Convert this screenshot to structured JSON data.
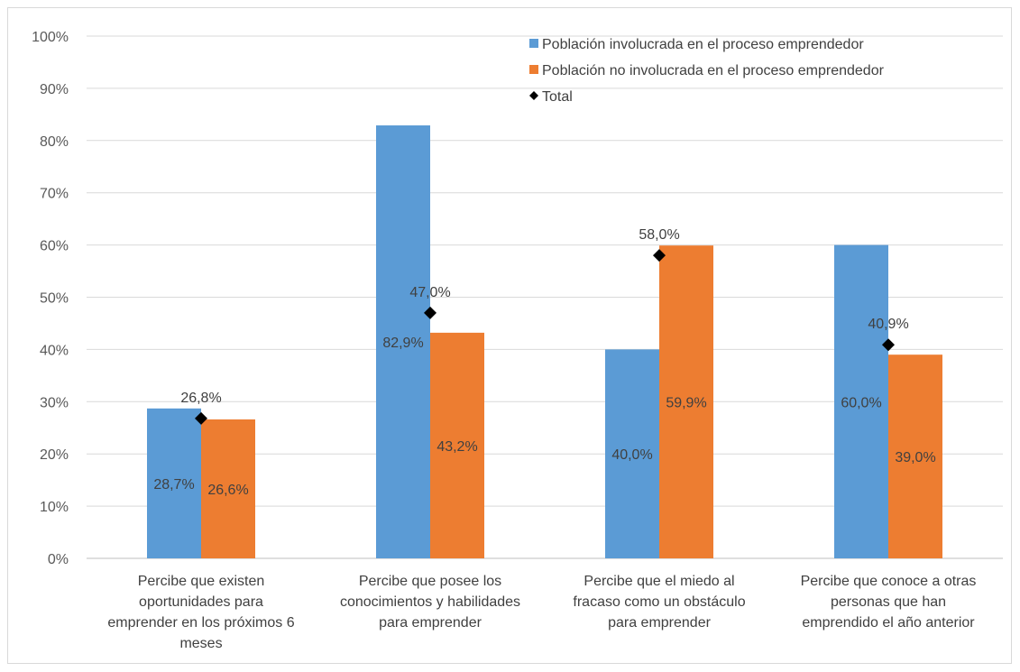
{
  "chart_data": {
    "type": "bar",
    "title": "",
    "xlabel": "",
    "ylabel": "",
    "ylim": [
      0,
      100
    ],
    "yticks": [
      "0%",
      "10%",
      "20%",
      "30%",
      "40%",
      "50%",
      "60%",
      "70%",
      "80%",
      "90%",
      "100%"
    ],
    "grid": true,
    "legend_position": "top-right",
    "categories": [
      [
        "Percibe que existen",
        "oportunidades para",
        "emprender en los próximos 6",
        "meses"
      ],
      [
        "Percibe que posee los",
        "conocimientos y habilidades",
        "para emprender"
      ],
      [
        "Percibe que el miedo al",
        "fracaso como un obstáculo",
        "para emprender"
      ],
      [
        "Percibe que conoce a otras",
        "personas que han",
        "emprendido el año anterior"
      ]
    ],
    "series": [
      {
        "name": "Población involucrada en el proceso emprendedor",
        "kind": "bar",
        "color": "#5b9bd5",
        "values": [
          28.7,
          82.9,
          40.0,
          60.0
        ],
        "labels": [
          "28,7%",
          "82,9%",
          "40,0%",
          "60,0%"
        ]
      },
      {
        "name": "Población no involucrada en el proceso emprendedor",
        "kind": "bar",
        "color": "#ed7d31",
        "values": [
          26.6,
          43.2,
          59.9,
          39.0
        ],
        "labels": [
          "26,6%",
          "43,2%",
          "59,9%",
          "39,0%"
        ]
      },
      {
        "name": "Total",
        "kind": "marker",
        "marker": "diamond",
        "color": "#000000",
        "values": [
          26.8,
          47.0,
          58.0,
          40.9
        ],
        "labels": [
          "26,8%",
          "47,0%",
          "58,0%",
          "40,9%"
        ]
      }
    ]
  }
}
